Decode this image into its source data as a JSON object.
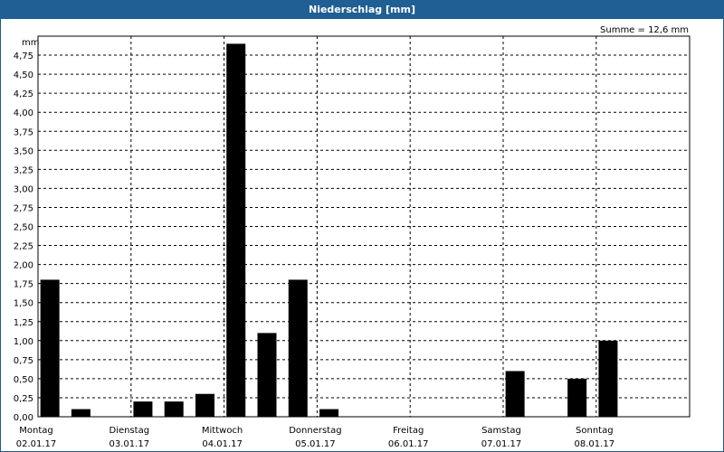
{
  "window": {
    "title": "Niederschlag [mm]"
  },
  "chart_data": {
    "type": "bar",
    "title": "Niederschlag [mm]",
    "ylabel": "mm",
    "summary": "Summe = 12,6 mm",
    "ylim": [
      0,
      5.0
    ],
    "yticks": [
      "0,00",
      "0,25",
      "0,50",
      "0,75",
      "1,00",
      "1,25",
      "1,50",
      "1,75",
      "2,00",
      "2,25",
      "2,50",
      "2,75",
      "3,00",
      "3,25",
      "3,50",
      "3,75",
      "4,00",
      "4,25",
      "4,50",
      "4,75"
    ],
    "days": [
      {
        "name": "Montag",
        "date": "02.01.17"
      },
      {
        "name": "Dienstag",
        "date": "03.01.17"
      },
      {
        "name": "Mittwoch",
        "date": "04.01.17"
      },
      {
        "name": "Donnerstag",
        "date": "05.01.17"
      },
      {
        "name": "Freitag",
        "date": "06.01.17"
      },
      {
        "name": "Samstag",
        "date": "07.01.17"
      },
      {
        "name": "Sonntag",
        "date": "08.01.17"
      }
    ],
    "bars_per_day": 3,
    "values": [
      1.8,
      0.1,
      0.0,
      0.2,
      0.2,
      0.3,
      4.9,
      1.1,
      1.8,
      0.1,
      0.0,
      0.0,
      0.0,
      0.0,
      0.0,
      0.6,
      0.0,
      0.5,
      1.0,
      0.0,
      0.0
    ],
    "grid": true
  }
}
